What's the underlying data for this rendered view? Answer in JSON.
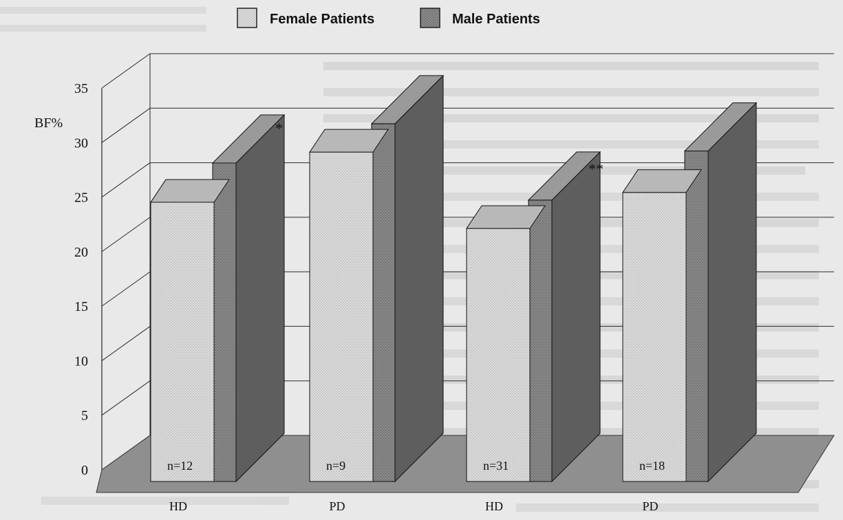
{
  "chart_data": {
    "type": "bar",
    "title": "",
    "ylabel": "BF%",
    "xlabel": "",
    "ylim": [
      0,
      35
    ],
    "yticks": [
      "0",
      "5",
      "10",
      "15",
      "20",
      "25",
      "30",
      "35"
    ],
    "grid": true,
    "legend_position": "top",
    "groups": [
      {
        "label": "HD",
        "n_labels": [
          "n=12",
          "n=31"
        ]
      },
      {
        "label": "PD",
        "n_labels": [
          "n=9",
          "n=18"
        ]
      }
    ],
    "categories": [
      "HD",
      "PD",
      "HD",
      "PD"
    ],
    "n_labels": [
      "n=12",
      "n=9",
      "n=31",
      "n=18"
    ],
    "significance": [
      "",
      "*",
      "",
      "**"
    ],
    "series": [
      {
        "name": "Female Patients",
        "values": [
          25.6,
          30.2,
          23.2,
          26.5
        ]
      },
      {
        "name": "Male Patients",
        "values": [
          29.2,
          32.8,
          25.8,
          30.3
        ]
      }
    ]
  },
  "colors": {
    "female_face": "#d6d6d6",
    "female_top": "#b8b8b8",
    "male_face": "#7a7a7a",
    "male_side": "#5e5e5e",
    "floor": "#8f8f8f",
    "background": "#e9e9e9"
  }
}
